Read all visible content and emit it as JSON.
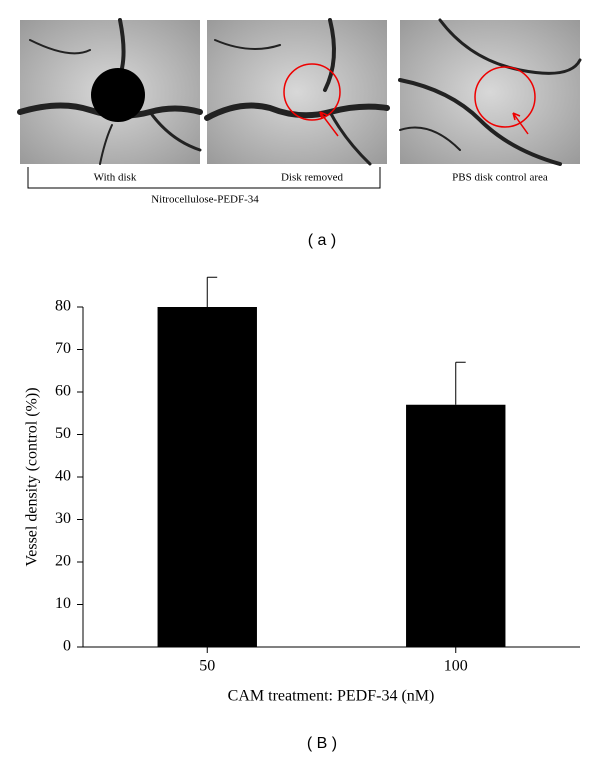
{
  "images": {
    "captions": [
      "With disk",
      "Disk removed",
      "PBS disk control area"
    ],
    "group_label": "Nitrocellulose-PEDF-34",
    "panel_label": "( a )"
  },
  "chart_data": {
    "type": "bar",
    "panel_label": "( B )",
    "x_label": "CAM treatment: PEDF-34 (nM)",
    "y_label": "Vessel density (control (%))",
    "categories": [
      "50",
      "100"
    ],
    "values": [
      80,
      57
    ],
    "errors": [
      7,
      10
    ],
    "color": "#000000",
    "ylim": [
      0,
      80
    ],
    "yticks": [
      0,
      10,
      20,
      30,
      40,
      50,
      60,
      70,
      80
    ]
  }
}
